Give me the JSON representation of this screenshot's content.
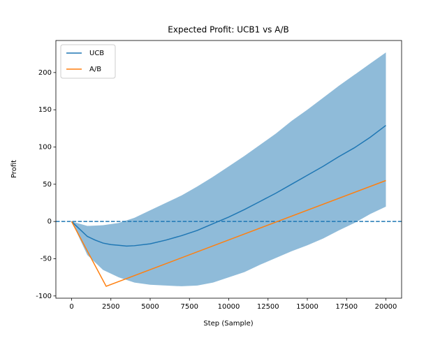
{
  "chart_data": {
    "type": "line",
    "title": "Expected Profit: UCB1 vs A/B",
    "xlabel": "Step (Sample)",
    "ylabel": "Profit",
    "xlim": [
      -1000,
      21000
    ],
    "ylim": [
      -103,
      243
    ],
    "xticks": [
      0,
      2500,
      5000,
      7500,
      10000,
      12500,
      15000,
      17500,
      20000
    ],
    "yticks": [
      -100,
      -50,
      0,
      50,
      100,
      150,
      200
    ],
    "hline": {
      "value": 0,
      "color": "#1f77b4"
    },
    "band": {
      "color": "#1f77b4",
      "x": [
        0,
        1000,
        2000,
        3000,
        4000,
        5000,
        6000,
        7000,
        8000,
        9000,
        10000,
        11000,
        12000,
        13000,
        14000,
        15000,
        16000,
        17000,
        18000,
        19000,
        20000
      ],
      "lower": [
        0,
        -45,
        -65,
        -75,
        -82,
        -85,
        -86,
        -87,
        -86,
        -82,
        -75,
        -68,
        -58,
        -49,
        -40,
        -32,
        -23,
        -12,
        -2,
        10,
        20
      ],
      "upper": [
        0,
        -6,
        -5,
        -2,
        5,
        15,
        25,
        35,
        47,
        60,
        74,
        88,
        103,
        118,
        135,
        150,
        166,
        182,
        197,
        212,
        227
      ]
    },
    "legend": "upper left",
    "series": [
      {
        "name": "UCB",
        "color": "#1f77b4",
        "x": [
          0,
          500,
          1000,
          1500,
          2000,
          2500,
          3000,
          3500,
          4000,
          5000,
          6000,
          7000,
          8000,
          9000,
          10000,
          11000,
          12000,
          13000,
          14000,
          15000,
          16000,
          17000,
          18000,
          19000,
          20000
        ],
        "values": [
          0,
          -10,
          -20,
          -25,
          -29,
          -31,
          -32,
          -33,
          -32.5,
          -30,
          -25,
          -19,
          -12,
          -3,
          6,
          16,
          27,
          38,
          50,
          62,
          74,
          87,
          99,
          113,
          129
        ]
      },
      {
        "name": "A/B",
        "color": "#ff7f0e",
        "x": [
          0,
          2200,
          20000
        ],
        "values": [
          0,
          -87,
          55
        ]
      }
    ]
  }
}
